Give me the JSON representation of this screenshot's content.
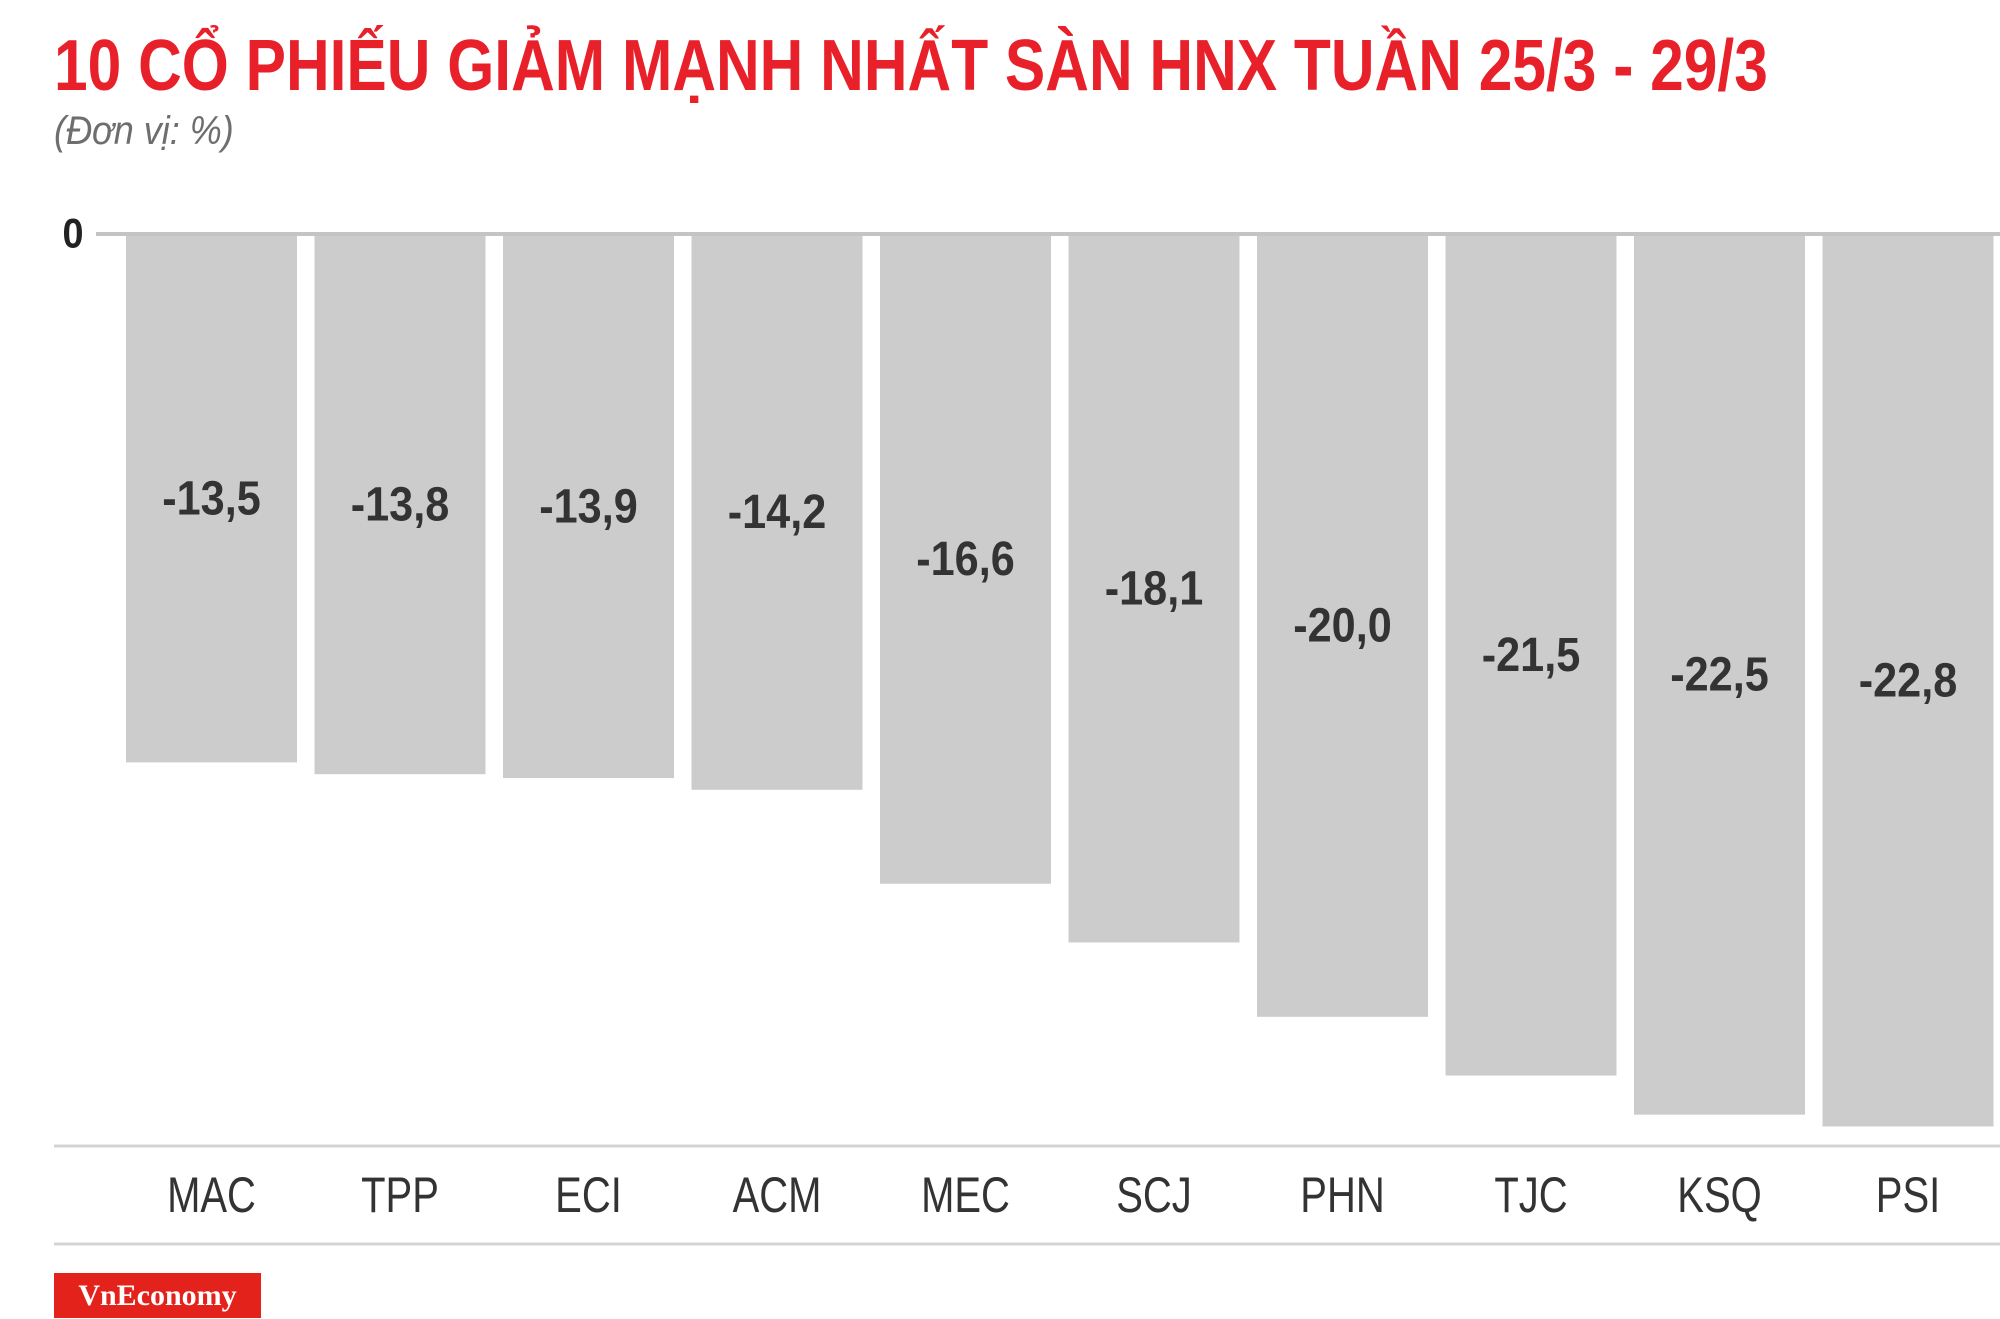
{
  "chart_data": {
    "type": "bar",
    "title": "10 CỔ PHIẾU GIẢM MẠNH NHẤT SÀN HNX TUẦN 25/3 - 29/3",
    "subtitle": "(Đơn vị: %)",
    "categories": [
      "MAC",
      "TPP",
      "ECI",
      "ACM",
      "MEC",
      "SCJ",
      "PHN",
      "TJC",
      "KSQ",
      "PSI"
    ],
    "values": [
      -13.5,
      -13.8,
      -13.9,
      -14.2,
      -16.6,
      -18.1,
      -20.0,
      -21.5,
      -22.5,
      -22.8
    ],
    "data_labels": [
      "-13,5",
      "-13,8",
      "-13,9",
      "-14,2",
      "-16,6",
      "-18,1",
      "-20,0",
      "-21,5",
      "-22,5",
      "-22,8"
    ],
    "yticks": [
      0
    ],
    "ytick_labels": [
      "0"
    ],
    "ylim": [
      -23.3,
      0
    ],
    "grid": false
  },
  "brand": {
    "logo_text": "VnEconomy"
  },
  "colors": {
    "title": "#e8202a",
    "subtitle": "#6e6e6e",
    "bars": "#cccccc",
    "baseline": "#c4c4c4",
    "divider": "#d4d4d4",
    "labels": "#333333",
    "logo_bg": "#e3231b",
    "logo_text": "#ffffff"
  }
}
